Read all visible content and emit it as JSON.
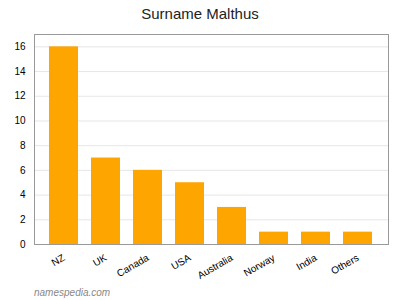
{
  "chart_data": {
    "type": "bar",
    "title": "Surname Malthus",
    "categories": [
      "NZ",
      "UK",
      "Canada",
      "USA",
      "Australia",
      "Norway",
      "India",
      "Others"
    ],
    "values": [
      16,
      7,
      6,
      5,
      3,
      1,
      1,
      1
    ],
    "color": "#FFA500",
    "ylim": [
      0,
      17
    ],
    "yticks": [
      0,
      2,
      4,
      6,
      8,
      10,
      12,
      14,
      16
    ],
    "grid": true,
    "caption": "namespedia.com"
  }
}
